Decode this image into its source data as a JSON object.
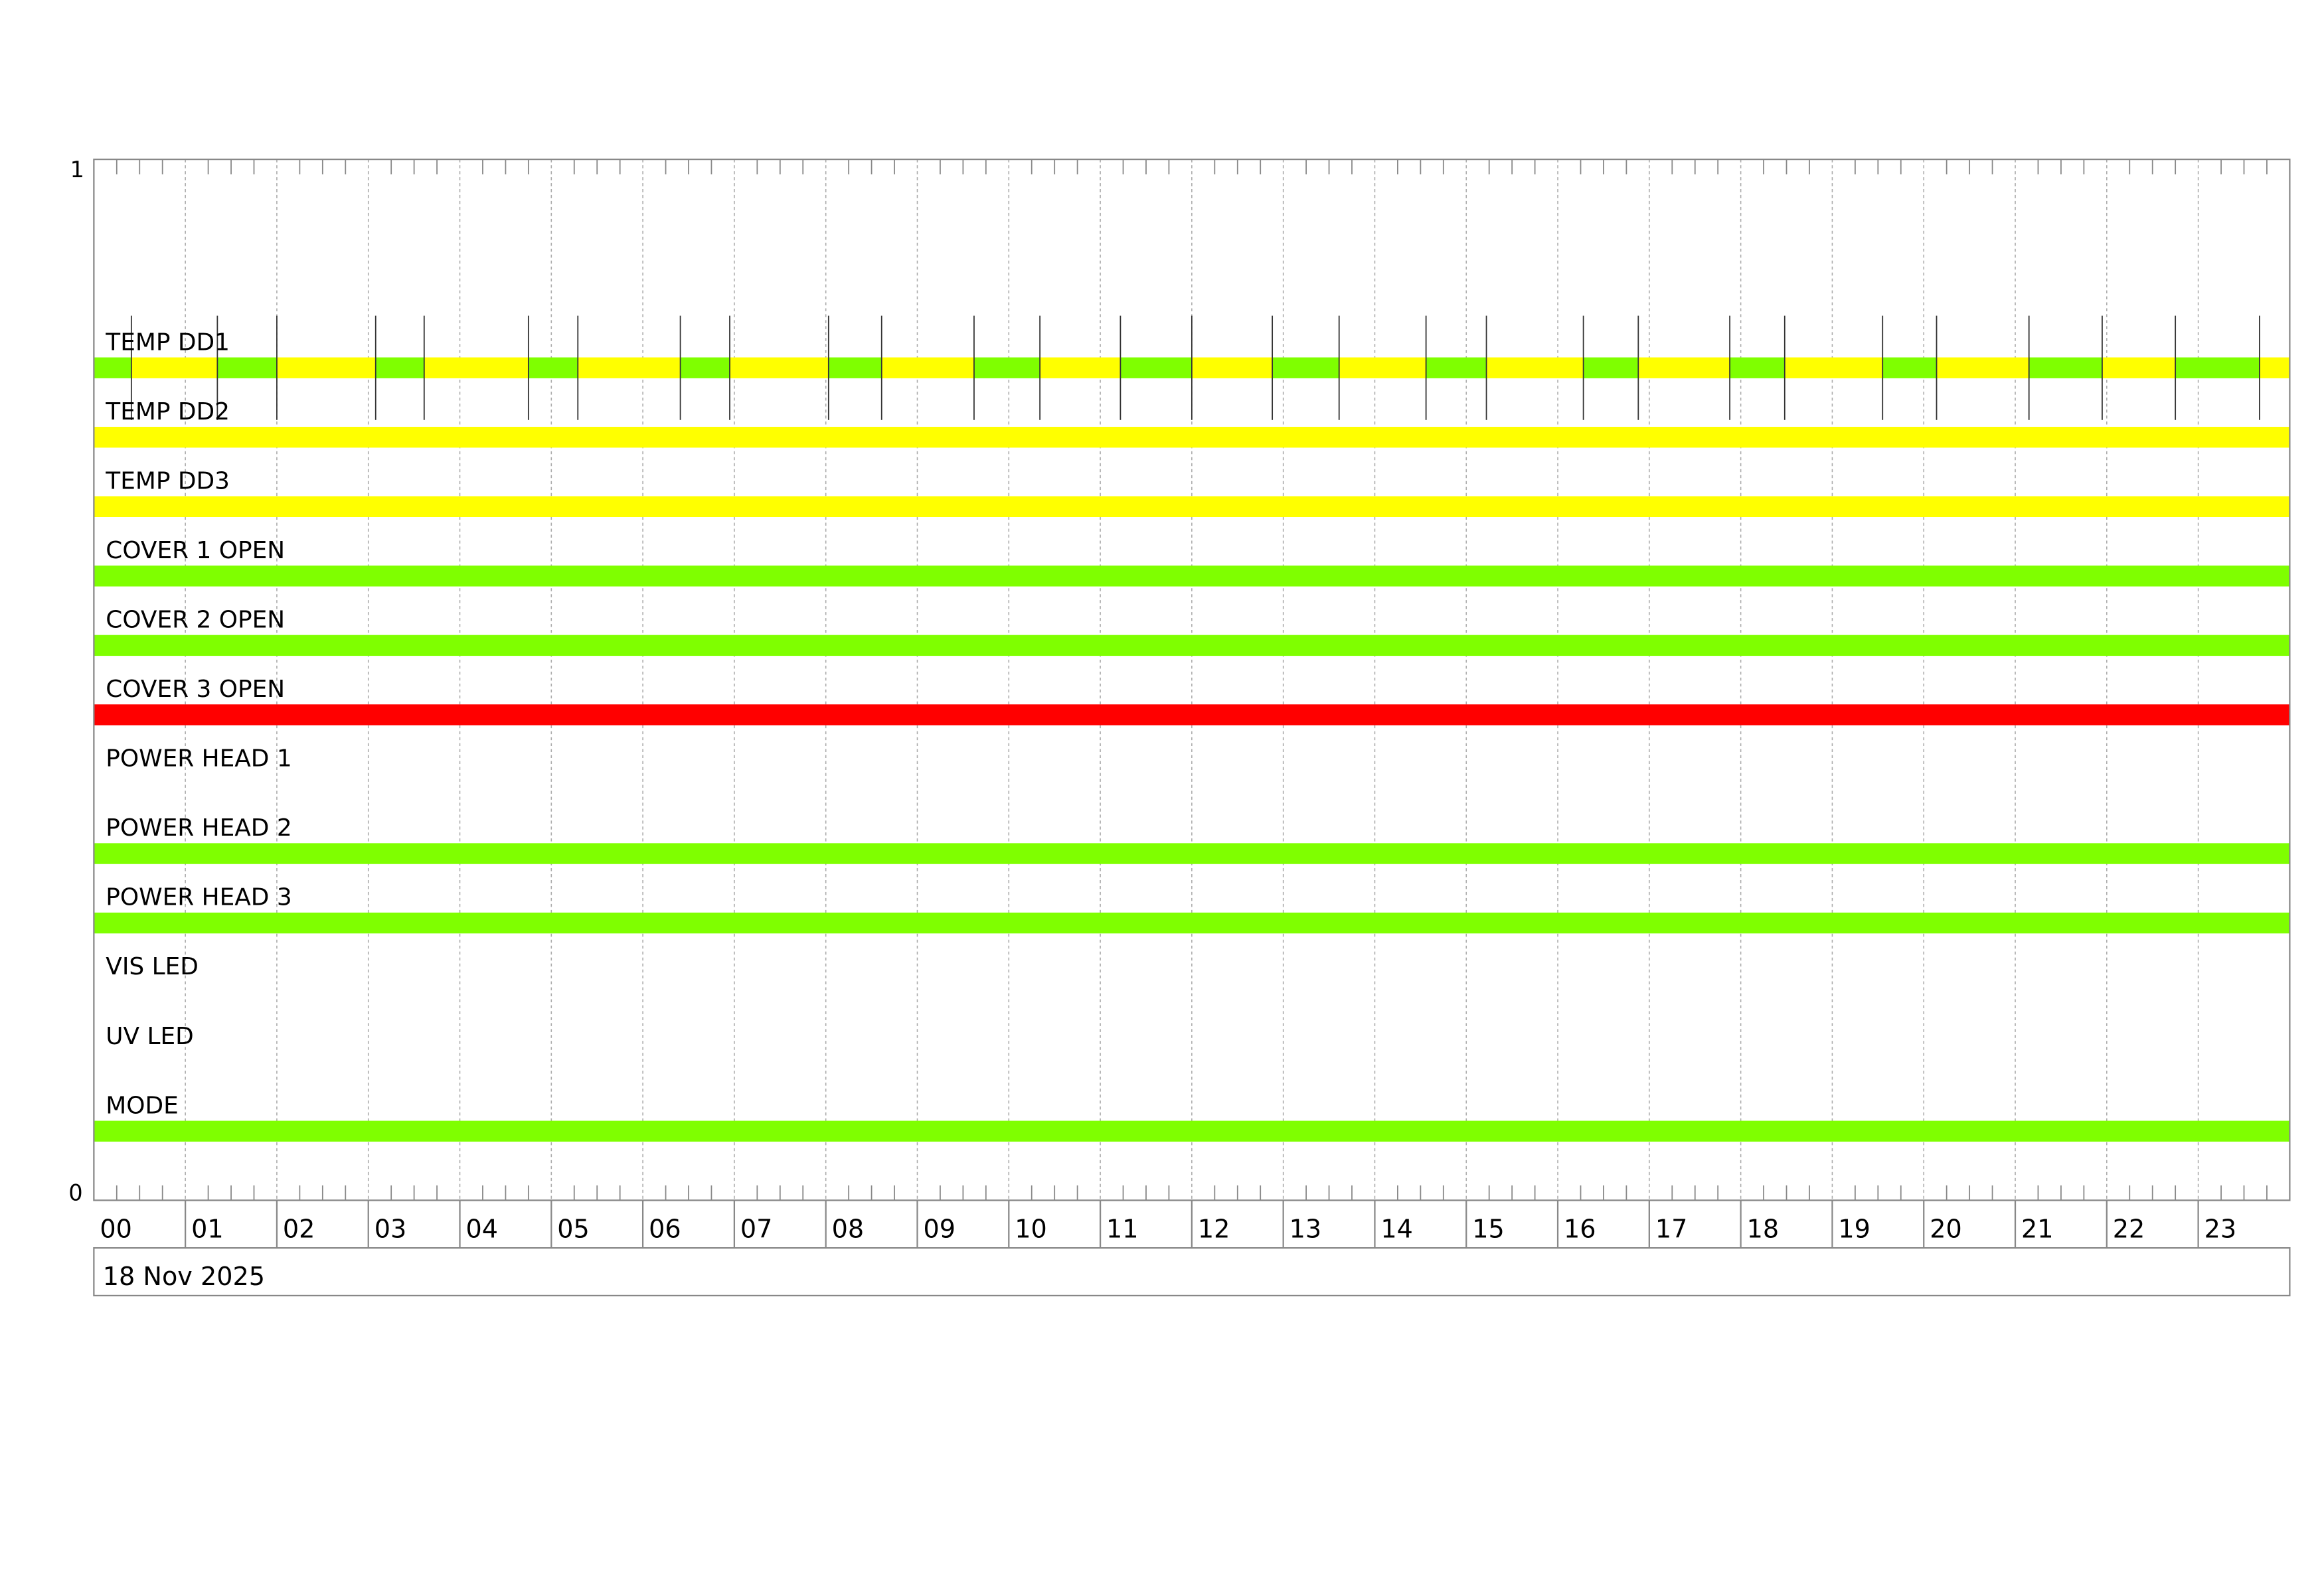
{
  "chart_data": {
    "type": "timeline",
    "y_axis_top_label": "1",
    "y_axis_bottom_label": "0",
    "x_tick_labels": [
      "00",
      "01",
      "02",
      "03",
      "04",
      "05",
      "06",
      "07",
      "08",
      "09",
      "10",
      "11",
      "12",
      "13",
      "14",
      "15",
      "16",
      "17",
      "18",
      "19",
      "20",
      "21",
      "22",
      "23"
    ],
    "xlim_hours": [
      0,
      24
    ],
    "date_label": "18 Nov 2025",
    "grid": true,
    "colors": {
      "green": "#7fff00",
      "yellow": "#ffff00",
      "red": "#ff0000"
    },
    "rows": [
      {
        "name": "TEMP DD1",
        "segments": [
          {
            "start": 0,
            "end": 0.41,
            "color": "green"
          },
          {
            "start": 0.41,
            "end": 1.35,
            "color": "yellow"
          },
          {
            "start": 1.35,
            "end": 2.0,
            "color": "green"
          },
          {
            "start": 2.0,
            "end": 3.08,
            "color": "yellow"
          },
          {
            "start": 3.08,
            "end": 3.61,
            "color": "green"
          },
          {
            "start": 3.61,
            "end": 4.75,
            "color": "yellow"
          },
          {
            "start": 4.75,
            "end": 5.29,
            "color": "green"
          },
          {
            "start": 5.29,
            "end": 6.41,
            "color": "yellow"
          },
          {
            "start": 6.41,
            "end": 6.95,
            "color": "green"
          },
          {
            "start": 6.95,
            "end": 8.03,
            "color": "yellow"
          },
          {
            "start": 8.03,
            "end": 8.61,
            "color": "green"
          },
          {
            "start": 8.61,
            "end": 9.62,
            "color": "yellow"
          },
          {
            "start": 9.62,
            "end": 10.34,
            "color": "green"
          },
          {
            "start": 10.34,
            "end": 11.22,
            "color": "yellow"
          },
          {
            "start": 11.22,
            "end": 12.0,
            "color": "green"
          },
          {
            "start": 12.0,
            "end": 12.88,
            "color": "yellow"
          },
          {
            "start": 12.88,
            "end": 13.61,
            "color": "green"
          },
          {
            "start": 13.61,
            "end": 14.56,
            "color": "yellow"
          },
          {
            "start": 14.56,
            "end": 15.22,
            "color": "green"
          },
          {
            "start": 15.22,
            "end": 16.28,
            "color": "yellow"
          },
          {
            "start": 16.28,
            "end": 16.88,
            "color": "green"
          },
          {
            "start": 16.88,
            "end": 17.88,
            "color": "yellow"
          },
          {
            "start": 17.88,
            "end": 18.48,
            "color": "green"
          },
          {
            "start": 18.48,
            "end": 19.55,
            "color": "yellow"
          },
          {
            "start": 19.55,
            "end": 20.14,
            "color": "green"
          },
          {
            "start": 20.14,
            "end": 21.15,
            "color": "yellow"
          },
          {
            "start": 21.15,
            "end": 21.95,
            "color": "green"
          },
          {
            "start": 21.95,
            "end": 22.75,
            "color": "yellow"
          },
          {
            "start": 22.75,
            "end": 23.67,
            "color": "green"
          },
          {
            "start": 23.67,
            "end": 24,
            "color": "yellow"
          }
        ]
      },
      {
        "name": "TEMP DD2",
        "segments": [
          {
            "start": 0,
            "end": 24,
            "color": "yellow"
          }
        ]
      },
      {
        "name": "TEMP DD3",
        "segments": [
          {
            "start": 0,
            "end": 24,
            "color": "yellow"
          }
        ]
      },
      {
        "name": "COVER 1 OPEN",
        "segments": [
          {
            "start": 0,
            "end": 24,
            "color": "green"
          }
        ]
      },
      {
        "name": "COVER 2 OPEN",
        "segments": [
          {
            "start": 0,
            "end": 24,
            "color": "green"
          }
        ]
      },
      {
        "name": "COVER 3 OPEN",
        "segments": [
          {
            "start": 0,
            "end": 24,
            "color": "red"
          }
        ]
      },
      {
        "name": "POWER HEAD 1",
        "segments": []
      },
      {
        "name": "POWER HEAD 2",
        "segments": [
          {
            "start": 0,
            "end": 24,
            "color": "green"
          }
        ]
      },
      {
        "name": "POWER HEAD 3",
        "segments": [
          {
            "start": 0,
            "end": 24,
            "color": "green"
          }
        ]
      },
      {
        "name": "VIS LED",
        "segments": []
      },
      {
        "name": "UV LED",
        "segments": []
      },
      {
        "name": "MODE",
        "segments": [
          {
            "start": 0,
            "end": 24,
            "color": "green"
          }
        ]
      }
    ]
  }
}
